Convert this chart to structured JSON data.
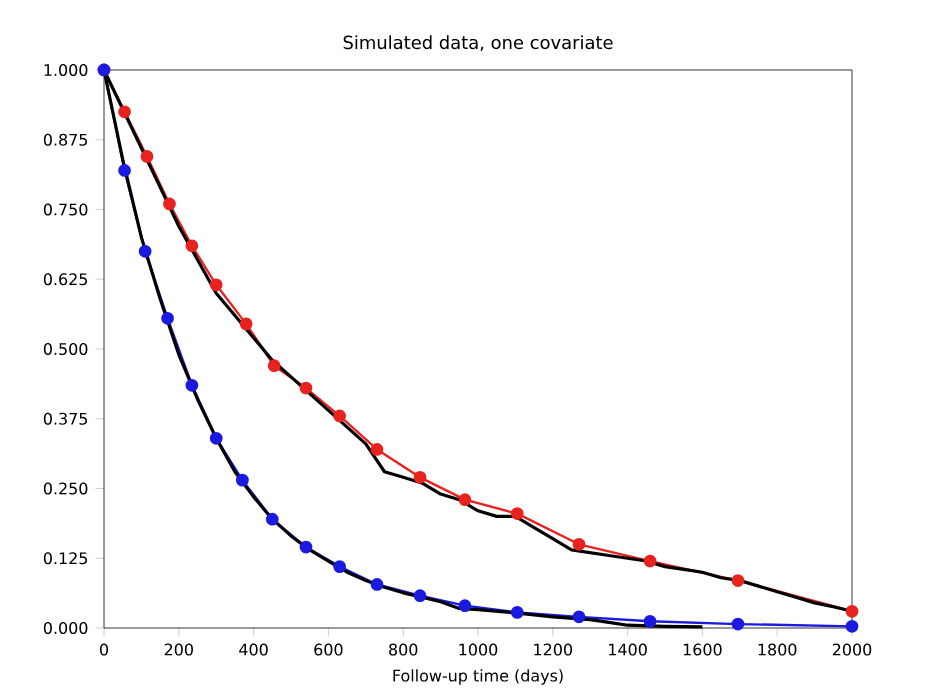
{
  "chart_data": {
    "type": "line",
    "title": "Simulated data, one covariate",
    "xlabel": "Follow-up time (days)",
    "xlim": [
      0,
      2000
    ],
    "ylim": [
      0,
      1
    ],
    "xticks": [
      0,
      200,
      400,
      600,
      800,
      1000,
      1200,
      1400,
      1600,
      1800,
      2000
    ],
    "yticks": [
      {
        "value": 0,
        "label": "0.000"
      },
      {
        "value": 0.125,
        "label": "0.125"
      },
      {
        "value": 0.25,
        "label": "0.250"
      },
      {
        "value": 0.375,
        "label": "0.375"
      },
      {
        "value": 0.5,
        "label": "0.500"
      },
      {
        "value": 0.625,
        "label": "0.625"
      },
      {
        "value": 0.75,
        "label": "0.750"
      },
      {
        "value": 0.875,
        "label": "0.875"
      },
      {
        "value": 1,
        "label": "1.000"
      }
    ],
    "grid": false,
    "series": [
      {
        "color": "#e8221e",
        "marker": "circle",
        "x": [
          0,
          55,
          115,
          175,
          235,
          300,
          380,
          455,
          540,
          630,
          730,
          845,
          965,
          1105,
          1270,
          1460,
          1695,
          2000
        ],
        "values": [
          1.0,
          0.925,
          0.845,
          0.76,
          0.685,
          0.615,
          0.545,
          0.47,
          0.43,
          0.38,
          0.32,
          0.27,
          0.23,
          0.205,
          0.15,
          0.12,
          0.085,
          0.03
        ]
      },
      {
        "color": "#1a1ae0",
        "marker": "circle",
        "x": [
          0,
          55,
          110,
          170,
          235,
          300,
          370,
          450,
          540,
          630,
          730,
          845,
          965,
          1105,
          1270,
          1460,
          1695,
          2000
        ],
        "values": [
          1.0,
          0.82,
          0.675,
          0.555,
          0.435,
          0.34,
          0.265,
          0.195,
          0.145,
          0.11,
          0.078,
          0.058,
          0.04,
          0.028,
          0.02,
          0.012,
          0.007,
          0.003
        ]
      },
      {
        "color": "#000000",
        "marker": "none",
        "x": [
          0,
          50,
          100,
          150,
          200,
          250,
          300,
          350,
          400,
          450,
          500,
          550,
          600,
          650,
          700,
          750,
          800,
          850,
          900,
          950,
          1000,
          1050,
          1100,
          1150,
          1200,
          1250,
          1300,
          1350,
          1400,
          1450,
          1500,
          1550,
          1600,
          1650,
          1700,
          1750,
          1800,
          1850,
          1900,
          1950,
          2000
        ],
        "values": [
          1.0,
          0.93,
          0.86,
          0.79,
          0.72,
          0.66,
          0.6,
          0.56,
          0.52,
          0.48,
          0.45,
          0.42,
          0.39,
          0.36,
          0.33,
          0.28,
          0.27,
          0.26,
          0.24,
          0.23,
          0.21,
          0.2,
          0.2,
          0.18,
          0.16,
          0.14,
          0.135,
          0.13,
          0.125,
          0.12,
          0.11,
          0.105,
          0.1,
          0.09,
          0.085,
          0.075,
          0.065,
          0.055,
          0.045,
          0.038,
          0.03
        ]
      },
      {
        "color": "#000000",
        "marker": "none",
        "x": [
          0,
          50,
          100,
          150,
          200,
          250,
          300,
          350,
          400,
          450,
          500,
          550,
          600,
          650,
          700,
          750,
          800,
          850,
          900,
          950,
          1000,
          1100,
          1200,
          1300,
          1350,
          1400,
          1500,
          1600
        ],
        "values": [
          1.0,
          0.84,
          0.7,
          0.59,
          0.49,
          0.41,
          0.34,
          0.28,
          0.235,
          0.195,
          0.165,
          0.14,
          0.12,
          0.1,
          0.085,
          0.073,
          0.063,
          0.055,
          0.047,
          0.035,
          0.033,
          0.027,
          0.02,
          0.015,
          0.01,
          0.005,
          0.003,
          0.002
        ]
      }
    ]
  }
}
